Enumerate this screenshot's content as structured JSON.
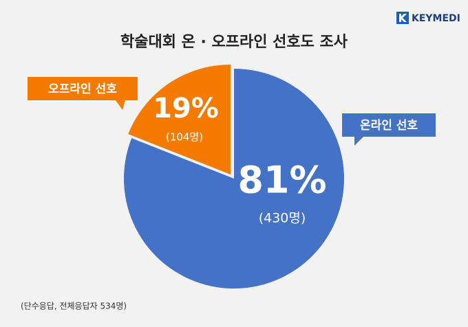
{
  "logo": "KEYMEDI",
  "chart_data": {
    "type": "pie",
    "title": "학술대회 온 · 오프라인 선호도 조사",
    "categories": [
      "온라인 선호",
      "오프라인 선호"
    ],
    "values": [
      81,
      19
    ],
    "value_labels": [
      "81%",
      "19%"
    ],
    "count_labels": [
      "(430명)",
      "(104명)"
    ],
    "colors": [
      "#4472c4",
      "#f57b00"
    ],
    "note": "(단수응답, 전체응답자 534명)"
  }
}
